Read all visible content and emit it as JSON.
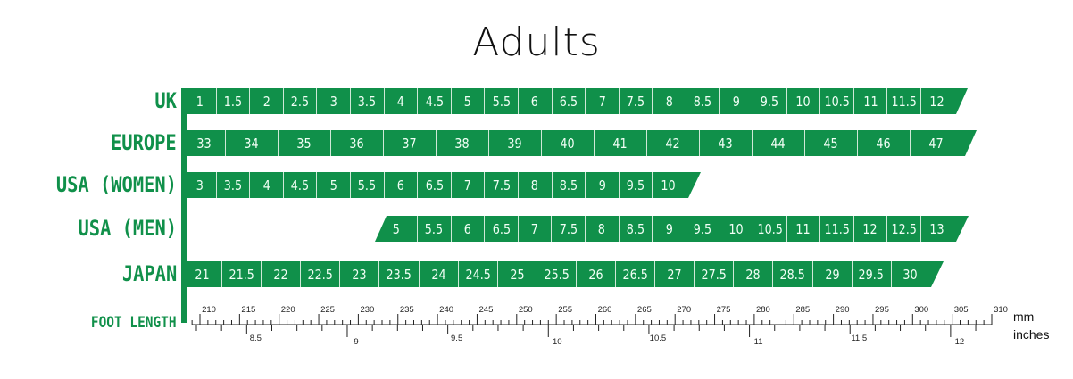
{
  "title": "Adults",
  "colors": {
    "bar": "#10904a",
    "label": "#10904a",
    "cell_text": "#f2fff6"
  },
  "chart_data": {
    "type": "table",
    "title": "Adults",
    "rows": [
      {
        "label": "UK",
        "values": [
          "1",
          "1.5",
          "2",
          "2.5",
          "3",
          "3.5",
          "4",
          "4.5",
          "5",
          "5.5",
          "6",
          "6.5",
          "7",
          "7.5",
          "8",
          "8.5",
          "9",
          "9.5",
          "10",
          "10.5",
          "11",
          "11.5",
          "12"
        ]
      },
      {
        "label": "EUROPE",
        "values": [
          "33",
          "34",
          "35",
          "36",
          "37",
          "38",
          "39",
          "40",
          "41",
          "42",
          "43",
          "44",
          "45",
          "46",
          "47"
        ]
      },
      {
        "label": "USA (WOMEN)",
        "values": [
          "3",
          "3.5",
          "4",
          "4.5",
          "5",
          "5.5",
          "6",
          "6.5",
          "7",
          "7.5",
          "8",
          "8.5",
          "9",
          "9.5",
          "10"
        ]
      },
      {
        "label": "USA (MEN)",
        "values": [
          "5",
          "5.5",
          "6",
          "6.5",
          "7",
          "7.5",
          "8",
          "8.5",
          "9",
          "9.5",
          "10",
          "10.5",
          "11",
          "11.5",
          "12",
          "12.5",
          "13"
        ]
      },
      {
        "label": "JAPAN",
        "values": [
          "21",
          "21.5",
          "22",
          "22.5",
          "23",
          "23.5",
          "24",
          "24.5",
          "25",
          "25.5",
          "26",
          "26.5",
          "27",
          "27.5",
          "28",
          "28.5",
          "29",
          "29.5",
          "30"
        ]
      }
    ],
    "foot_length": {
      "label": "FOOT LENGTH",
      "mm_unit": "mm",
      "inch_unit": "inches",
      "mm_range": [
        210,
        310
      ],
      "mm_tick_labels": [
        "210",
        "215",
        "220",
        "225",
        "230",
        "235",
        "240",
        "245",
        "250",
        "255",
        "260",
        "265",
        "270",
        "275",
        "280",
        "285",
        "290",
        "295",
        "300",
        "305",
        "310"
      ],
      "inch_tick_labels": [
        "8.5",
        "9",
        "9.5",
        "10",
        "10.5",
        "11",
        "11.5",
        "12"
      ]
    }
  }
}
